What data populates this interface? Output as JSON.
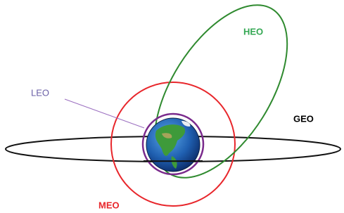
{
  "labels": {
    "heo": "HEO",
    "leo": "LEO",
    "geo": "GEO",
    "meo": "MEO"
  }
}
